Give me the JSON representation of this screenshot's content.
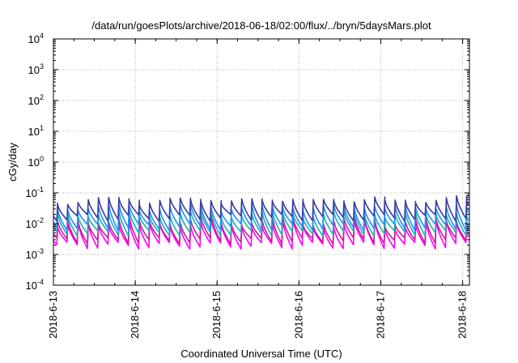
{
  "chart_data": {
    "type": "line",
    "title": "/data/run/goesPlots/archive/2018-06-18/02:00/flux/../bryn/5daysMars.plot",
    "xlabel": "Coordinated Universal Time (UTC)",
    "ylabel": "cGy/day",
    "y_scale": "log",
    "ylim": [
      0.0001,
      10000
    ],
    "y_ticks": [
      {
        "value": 0.0001,
        "base": "10",
        "exp": "-4"
      },
      {
        "value": 0.001,
        "base": "10",
        "exp": "-3"
      },
      {
        "value": 0.01,
        "base": "10",
        "exp": "-2"
      },
      {
        "value": 0.1,
        "base": "10",
        "exp": "-1"
      },
      {
        "value": 1,
        "base": "10",
        "exp": "0"
      },
      {
        "value": 10,
        "base": "10",
        "exp": "1"
      },
      {
        "value": 100,
        "base": "10",
        "exp": "2"
      },
      {
        "value": 1000,
        "base": "10",
        "exp": "3"
      },
      {
        "value": 10000,
        "base": "10",
        "exp": "4"
      }
    ],
    "xlim": [
      "2018-06-13 00:00",
      "2018-06-18 02:00"
    ],
    "x_ticks": [
      "2018-6-13",
      "2018-6-14",
      "2018-6-15",
      "2018-6-16",
      "2018-6-17",
      "2018-6-18"
    ],
    "grid": true,
    "series": [
      {
        "color": "#ff00ff",
        "peak_range": [
          0.006,
          0.016
        ],
        "trough_range": [
          0.0015,
          0.0025
        ]
      },
      {
        "color": "#cc1a9a",
        "peak_range": [
          0.008,
          0.02
        ],
        "trough_range": [
          0.0022,
          0.0035
        ]
      },
      {
        "color": "#20b2aa",
        "peak_range": [
          0.015,
          0.03
        ],
        "trough_range": [
          0.004,
          0.006
        ]
      },
      {
        "color": "#1e90ff",
        "peak_range": [
          0.025,
          0.05
        ],
        "trough_range": [
          0.006,
          0.01
        ]
      },
      {
        "color": "#3a3aa0",
        "peak_range": [
          0.04,
          0.085
        ],
        "trough_range": [
          0.012,
          0.02
        ]
      }
    ]
  }
}
